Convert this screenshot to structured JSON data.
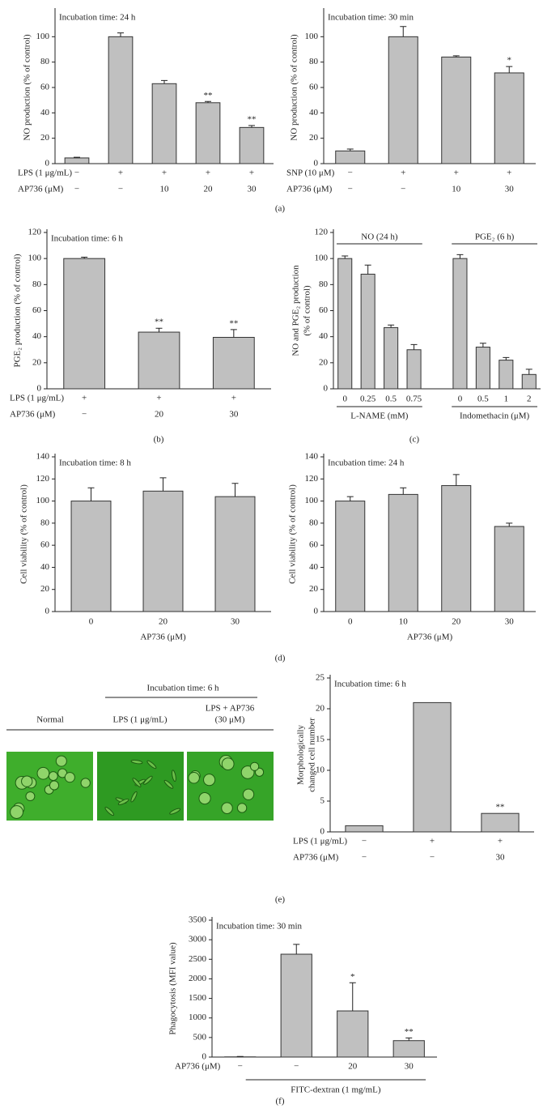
{
  "panel_labels": [
    "(a)",
    "(b)",
    "(c)",
    "(d)",
    "(e)",
    "(f)"
  ],
  "micrographs": {
    "title": "Incubation time: 6 h",
    "labels": [
      [
        "Normal"
      ],
      [
        "LPS (1 μg/mL)"
      ],
      [
        "LPS + AP736",
        "(30 μM)"
      ]
    ]
  },
  "chart_data": [
    {
      "type": "bar",
      "annotation": "Incubation time: 24 h",
      "y_label": [
        "NO production (% of control)"
      ],
      "values": [
        4.5,
        100,
        63,
        48,
        28.5
      ],
      "errors": [
        0.5,
        3,
        2.5,
        1,
        1.5
      ],
      "significance": [
        null,
        null,
        null,
        "**",
        "**"
      ],
      "conditions": [
        {
          "label": "LPS (1 μg/mL)",
          "values": [
            "−",
            "+",
            "+",
            "+",
            "+"
          ]
        },
        {
          "label": "AP736 (μM)",
          "values": [
            "−",
            "−",
            "10",
            "20",
            "30"
          ]
        }
      ],
      "color": "#c0c0c0",
      "ylim": [
        0,
        120
      ],
      "yticks": [
        0,
        20,
        40,
        60,
        80,
        100
      ]
    },
    {
      "type": "bar",
      "annotation": "Incubation time: 30 min",
      "y_label": [
        "NO production (% of control)"
      ],
      "values": [
        10,
        100,
        84,
        71.5
      ],
      "errors": [
        1.5,
        8,
        1,
        5
      ],
      "significance": [
        null,
        null,
        null,
        "*"
      ],
      "conditions": [
        {
          "label": "SNP (10 μM)",
          "values": [
            "−",
            "+",
            "+",
            "+"
          ]
        },
        {
          "label": "AP736 (μM)",
          "values": [
            "−",
            "−",
            "10",
            "30"
          ]
        }
      ],
      "color": "#c0c0c0",
      "ylim": [
        0,
        120
      ],
      "yticks": [
        0,
        20,
        40,
        60,
        80,
        100
      ]
    },
    {
      "type": "bar",
      "annotation": "Incubation time: 6 h",
      "y_label": [
        "PGE₂ production (% of control)"
      ],
      "values": [
        100,
        43.5,
        39.5
      ],
      "errors": [
        1,
        3,
        6
      ],
      "significance": [
        null,
        "**",
        "**"
      ],
      "conditions": [
        {
          "label": "LPS (1 μg/mL)",
          "values": [
            "+",
            "+",
            "+"
          ]
        },
        {
          "label": "AP736 (μM)",
          "values": [
            "−",
            "20",
            "30"
          ]
        }
      ],
      "color": "#c0c0c0",
      "ylim": [
        0,
        120
      ],
      "yticks": [
        0,
        20,
        40,
        60,
        80,
        100,
        120
      ]
    },
    {
      "type": "bar",
      "y_label": [
        "NO and PGE₂ production",
        "(% of control)"
      ],
      "groups": [
        {
          "top_label": "NO (24 h)",
          "axis_label": "L-NAME (mM)",
          "categories": [
            "0",
            "0.25",
            "0.5",
            "0.75"
          ],
          "values": [
            100,
            88,
            47,
            30
          ],
          "errors": [
            2,
            7,
            2,
            4
          ]
        },
        {
          "top_label": "PGE₂ (6 h)",
          "axis_label": "Indomethacin (μM)",
          "categories": [
            "0",
            "0.5",
            "1",
            "2"
          ],
          "values": [
            100,
            32,
            22,
            11
          ],
          "errors": [
            3,
            3,
            2,
            4
          ]
        }
      ],
      "color": "#c0c0c0",
      "ylim": [
        0,
        120
      ],
      "yticks": [
        0,
        20,
        40,
        60,
        80,
        100,
        120
      ]
    },
    {
      "type": "bar",
      "annotation": "Incubation time: 8 h",
      "y_label": [
        "Cell viability (% of control)"
      ],
      "x_label": "AP736 (μM)",
      "categories": [
        "0",
        "20",
        "30"
      ],
      "values": [
        100,
        109,
        104
      ],
      "errors": [
        12,
        12,
        12
      ],
      "color": "#c0c0c0",
      "ylim": [
        0,
        140
      ],
      "yticks": [
        0,
        20,
        40,
        60,
        80,
        100,
        120,
        140
      ]
    },
    {
      "type": "bar",
      "annotation": "Incubation time: 24 h",
      "y_label": [
        "Cell viability (% of control)"
      ],
      "x_label": "AP736 (μM)",
      "categories": [
        "0",
        "10",
        "20",
        "30"
      ],
      "values": [
        100,
        106,
        114,
        77
      ],
      "errors": [
        4,
        6,
        10,
        3
      ],
      "color": "#c0c0c0",
      "ylim": [
        0,
        140
      ],
      "yticks": [
        0,
        20,
        40,
        60,
        80,
        100,
        120,
        140
      ]
    },
    {
      "type": "bar",
      "annotation": "Incubation time: 6 h",
      "y_label": [
        "Morphologically",
        "changed cell number"
      ],
      "values": [
        1,
        21,
        3
      ],
      "significance": [
        null,
        null,
        "**"
      ],
      "conditions": [
        {
          "label": "LPS (1 μg/mL)",
          "values": [
            "−",
            "+",
            "+"
          ]
        },
        {
          "label": "AP736 (μM)",
          "values": [
            "−",
            "−",
            "30"
          ]
        }
      ],
      "color": "#c0c0c0",
      "ylim": [
        0,
        25
      ],
      "yticks": [
        0,
        5,
        10,
        15,
        20,
        25
      ]
    },
    {
      "type": "bar",
      "annotation": "Incubation time: 30 min",
      "y_label": [
        "Phagocytosis (MFI value)"
      ],
      "values": [
        5,
        2630,
        1180,
        420
      ],
      "errors": [
        10,
        250,
        720,
        70
      ],
      "significance": [
        null,
        null,
        "*",
        "**"
      ],
      "conditions": [
        {
          "label": "AP736 (μM)",
          "values": [
            "−",
            "−",
            "20",
            "30"
          ]
        }
      ],
      "footer": "FITC-dextran (1 mg/mL)",
      "color": "#c0c0c0",
      "ylim": [
        0,
        3500
      ],
      "yticks": [
        0,
        500,
        1000,
        1500,
        2000,
        2500,
        3000,
        3500
      ]
    }
  ]
}
